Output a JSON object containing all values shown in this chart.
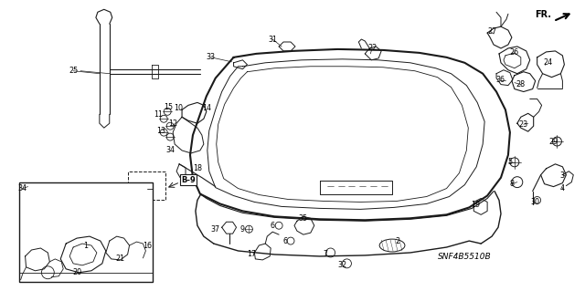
{
  "background_color": "#ffffff",
  "line_color": "#1a1a1a",
  "text_color": "#000000",
  "diagram_code": "SNF4B5510B",
  "fr_label": "FR.",
  "fig_width": 6.4,
  "fig_height": 3.19,
  "dpi": 100,
  "label_fs": 6.0
}
